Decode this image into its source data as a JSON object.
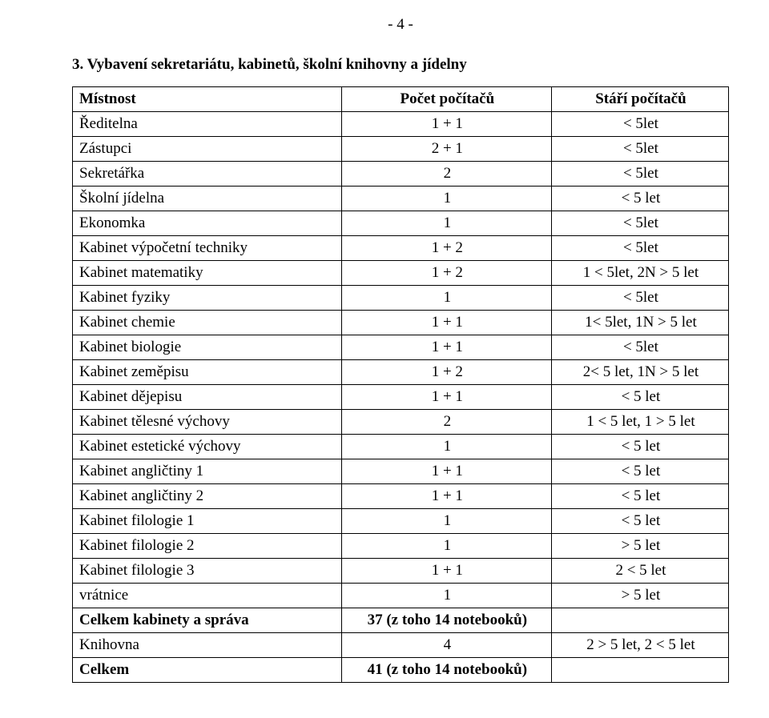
{
  "page_number": "- 4 -",
  "section_title": "3.  Vybavení sekretariátu, kabinetů, školní knihovny a jídelny",
  "table": {
    "headers": [
      "Místnost",
      "Počet počítačů",
      "Stáří počítačů"
    ],
    "rows": [
      [
        "Ředitelna",
        "1 + 1",
        "< 5let"
      ],
      [
        "Zástupci",
        "2 + 1",
        "< 5let"
      ],
      [
        "Sekretářka",
        "2",
        "< 5let"
      ],
      [
        "Školní jídelna",
        "1",
        "< 5 let"
      ],
      [
        "Ekonomka",
        "1",
        "< 5let"
      ],
      [
        "Kabinet výpočetní techniky",
        "1 + 2",
        "< 5let"
      ],
      [
        "Kabinet matematiky",
        "1 + 2",
        "1 < 5let, 2N > 5 let"
      ],
      [
        "Kabinet fyziky",
        "1",
        "< 5let"
      ],
      [
        "Kabinet chemie",
        "1 + 1",
        "1< 5let, 1N > 5 let"
      ],
      [
        "Kabinet biologie",
        "1 + 1",
        "< 5let"
      ],
      [
        "Kabinet zeměpisu",
        "1 + 2",
        "2< 5 let, 1N > 5 let"
      ],
      [
        "Kabinet dějepisu",
        "1 + 1",
        "< 5 let"
      ],
      [
        "Kabinet tělesné výchovy",
        "2",
        "1 < 5 let, 1 > 5 let"
      ],
      [
        "Kabinet estetické výchovy",
        "1",
        "< 5 let"
      ],
      [
        "Kabinet angličtiny 1",
        "1 + 1",
        "< 5 let"
      ],
      [
        "Kabinet angličtiny 2",
        "1 + 1",
        "< 5 let"
      ],
      [
        "Kabinet filologie 1",
        "1",
        "< 5 let"
      ],
      [
        "Kabinet filologie 2",
        "1",
        "> 5 let"
      ],
      [
        "Kabinet filologie 3",
        "1 + 1",
        "2 < 5 let"
      ],
      [
        "vrátnice",
        "1",
        "> 5 let"
      ],
      [
        "Celkem kabinety a správa",
        "37 (z toho 14 notebooků)",
        ""
      ],
      [
        "Knihovna",
        "4",
        "2 > 5 let, 2 < 5 let"
      ],
      [
        "Celkem",
        "41 (z toho 14 notebooků)",
        ""
      ]
    ],
    "bold_row_indices": [
      20,
      22
    ]
  }
}
